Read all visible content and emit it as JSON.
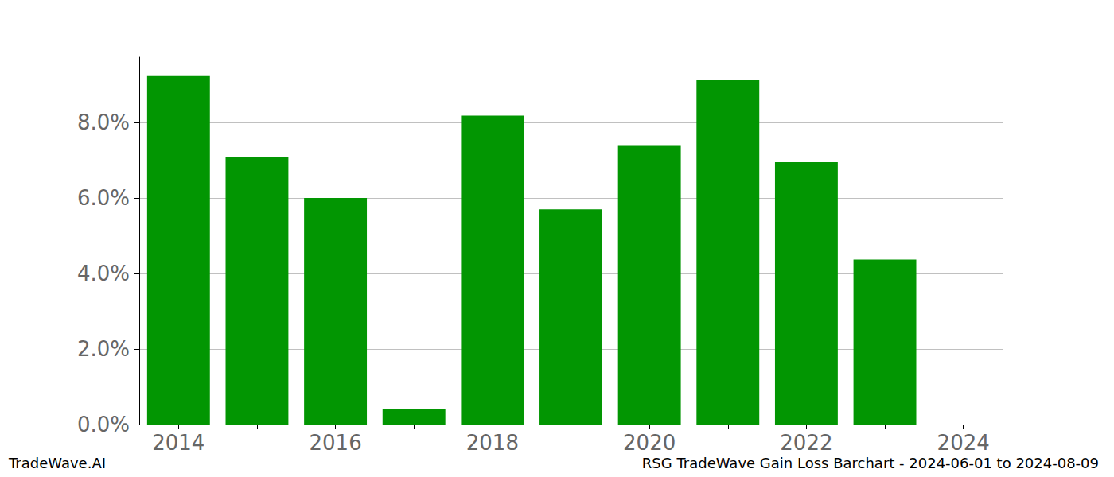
{
  "chart_data": {
    "type": "bar",
    "title": "RSG TradeWave Gain Loss Barchart - 2024-06-01 to 2024-08-09",
    "annotations": [
      "TradeWave.AI"
    ],
    "categories": [
      "2014",
      null,
      "2016",
      null,
      "2018",
      null,
      "2020",
      null,
      "2022",
      null,
      "2024"
    ],
    "values": [
      9.25,
      7.08,
      6.0,
      0.42,
      8.18,
      5.7,
      7.38,
      9.12,
      6.95,
      4.37,
      null
    ],
    "color": "#029602",
    "ylim": [
      0,
      9.73
    ],
    "yticks": [
      {
        "value": 0,
        "label": "0.0%"
      },
      {
        "value": 2,
        "label": "2.0%"
      },
      {
        "value": 4,
        "label": "4.0%"
      },
      {
        "value": 6,
        "label": "6.0%"
      },
      {
        "value": 8,
        "label": "8.0%"
      }
    ],
    "grid": true
  }
}
